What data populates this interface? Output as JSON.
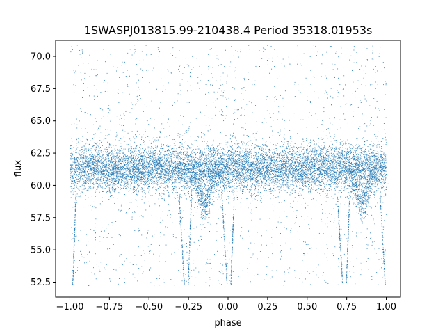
{
  "chart_data": {
    "type": "scatter",
    "title": "1SWASPJ013815.99-210438.4 Period 35318.01953s",
    "xlabel": "phase",
    "ylabel": "flux",
    "xlim": [
      -1.09,
      1.09
    ],
    "ylim": [
      51.34,
      71.24
    ],
    "x_ticks": [
      {
        "value": -1.0,
        "label": "−1.00"
      },
      {
        "value": -0.75,
        "label": "−0.75"
      },
      {
        "value": -0.5,
        "label": "−0.50"
      },
      {
        "value": -0.25,
        "label": "−0.25"
      },
      {
        "value": 0.0,
        "label": "0.00"
      },
      {
        "value": 0.25,
        "label": "0.25"
      },
      {
        "value": 0.5,
        "label": "0.50"
      },
      {
        "value": 0.75,
        "label": "0.75"
      },
      {
        "value": 1.0,
        "label": "1.00"
      }
    ],
    "y_ticks": [
      {
        "value": 52.5,
        "label": "52.5"
      },
      {
        "value": 55.0,
        "label": "55.0"
      },
      {
        "value": 57.5,
        "label": "57.5"
      },
      {
        "value": 60.0,
        "label": "60.0"
      },
      {
        "value": 62.5,
        "label": "62.5"
      },
      {
        "value": 65.0,
        "label": "65.0"
      },
      {
        "value": 67.5,
        "label": "67.5"
      },
      {
        "value": 70.0,
        "label": "70.0"
      }
    ],
    "grid": false,
    "marker_color": "#1f77b4",
    "series": [
      {
        "x_range": [
          -1.0,
          1.0
        ],
        "y_range": [
          52.2,
          70.9
        ],
        "core_median_flux": 61.3,
        "core_spread": 0.9,
        "eclipse_min_flux": 52.3,
        "eclipse_phases": [
          -1.0,
          -0.27,
          0.0,
          0.73,
          1.0
        ],
        "secondary_dip_phases": [
          -0.15,
          0.85
        ],
        "secondary_dip_flux": 58.0
      }
    ]
  }
}
